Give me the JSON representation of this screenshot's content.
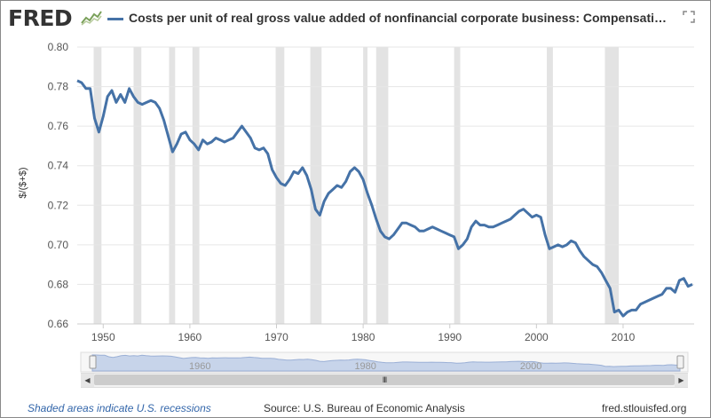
{
  "header": {
    "logo_text": "FRED",
    "logo_icon": "line-graph-icon",
    "title": "Costs per unit of real gross value added of nonfinancial corporate business: Compensation of emp...",
    "expand_icon": "expand-icon"
  },
  "colors": {
    "series": "#4572a7",
    "recession": "#e3e3e3",
    "grid": "#e6e6e6",
    "navigator_fill": "#c7d4ea",
    "navigator_line": "#9bb0d6",
    "link": "#3366aa"
  },
  "navigator": {
    "labels": [
      "1960",
      "1980",
      "2000"
    ],
    "range_start": 1947.0,
    "range_end": 2018.0
  },
  "scrollbar": {
    "grip": "III"
  },
  "footer": {
    "recession_note": "Shaded areas indicate U.S. recessions",
    "source": "Source: U.S. Bureau of Economic Analysis",
    "site": "fred.stlouisfed.org"
  },
  "chart_data": {
    "type": "line",
    "ylabel": "$/($+$)",
    "xlim": [
      1947.0,
      2018.2
    ],
    "ylim": [
      0.66,
      0.8
    ],
    "x_ticks": [
      1950,
      1960,
      1970,
      1980,
      1990,
      2000,
      2010
    ],
    "x_tick_labels": [
      "1950",
      "1960",
      "1970",
      "1980",
      "1990",
      "2000",
      "2010"
    ],
    "y_ticks": [
      0.66,
      0.68,
      0.7,
      0.72,
      0.74,
      0.76,
      0.78,
      0.8
    ],
    "y_tick_labels": [
      "0.66",
      "0.68",
      "0.70",
      "0.72",
      "0.74",
      "0.76",
      "0.78",
      "0.80"
    ],
    "grid": true,
    "recessions": [
      [
        1948.9,
        1949.8
      ],
      [
        1953.5,
        1954.4
      ],
      [
        1957.6,
        1958.3
      ],
      [
        1960.3,
        1961.1
      ],
      [
        1969.9,
        1970.9
      ],
      [
        1973.9,
        1975.2
      ],
      [
        1980.0,
        1980.5
      ],
      [
        1981.5,
        1982.9
      ],
      [
        1990.5,
        1991.2
      ],
      [
        2001.2,
        2001.9
      ],
      [
        2007.9,
        2009.5
      ]
    ],
    "series": [
      {
        "x": [
          1947.0,
          1947.5,
          1948.0,
          1948.5,
          1949.0,
          1949.5,
          1950.0,
          1950.5,
          1951.0,
          1951.5,
          1952.0,
          1952.5,
          1953.0,
          1953.5,
          1954.0,
          1954.5,
          1955.0,
          1955.5,
          1956.0,
          1956.5,
          1957.0,
          1957.5,
          1958.0,
          1958.5,
          1959.0,
          1959.5,
          1960.0,
          1960.5,
          1961.0,
          1961.5,
          1962.0,
          1962.5,
          1963.0,
          1963.5,
          1964.0,
          1964.5,
          1965.0,
          1965.5,
          1966.0,
          1966.5,
          1967.0,
          1967.5,
          1968.0,
          1968.5,
          1969.0,
          1969.5,
          1970.0,
          1970.5,
          1971.0,
          1971.5,
          1972.0,
          1972.5,
          1973.0,
          1973.5,
          1974.0,
          1974.5,
          1975.0,
          1975.5,
          1976.0,
          1976.5,
          1977.0,
          1977.5,
          1978.0,
          1978.5,
          1979.0,
          1979.5,
          1980.0,
          1980.5,
          1981.0,
          1981.5,
          1982.0,
          1982.5,
          1983.0,
          1983.5,
          1984.0,
          1984.5,
          1985.0,
          1985.5,
          1986.0,
          1986.5,
          1987.0,
          1987.5,
          1988.0,
          1988.5,
          1989.0,
          1989.5,
          1990.0,
          1990.5,
          1991.0,
          1991.5,
          1992.0,
          1992.5,
          1993.0,
          1993.5,
          1994.0,
          1994.5,
          1995.0,
          1995.5,
          1996.0,
          1996.5,
          1997.0,
          1997.5,
          1998.0,
          1998.5,
          1999.0,
          1999.5,
          2000.0,
          2000.5,
          2001.0,
          2001.5,
          2002.0,
          2002.5,
          2003.0,
          2003.5,
          2004.0,
          2004.5,
          2005.0,
          2005.5,
          2006.0,
          2006.5,
          2007.0,
          2007.5,
          2008.0,
          2008.5,
          2009.0,
          2009.5,
          2010.0,
          2010.5,
          2011.0,
          2011.5,
          2012.0,
          2012.5,
          2013.0,
          2013.5,
          2014.0,
          2014.5,
          2015.0,
          2015.5,
          2016.0,
          2016.5,
          2017.0,
          2017.5,
          2018.0
        ],
        "values": [
          0.783,
          0.782,
          0.779,
          0.779,
          0.764,
          0.757,
          0.765,
          0.775,
          0.778,
          0.772,
          0.776,
          0.772,
          0.779,
          0.775,
          0.772,
          0.771,
          0.772,
          0.773,
          0.772,
          0.769,
          0.763,
          0.755,
          0.747,
          0.751,
          0.756,
          0.757,
          0.753,
          0.751,
          0.748,
          0.753,
          0.751,
          0.752,
          0.754,
          0.753,
          0.752,
          0.753,
          0.754,
          0.757,
          0.76,
          0.757,
          0.754,
          0.749,
          0.748,
          0.749,
          0.746,
          0.738,
          0.734,
          0.731,
          0.73,
          0.733,
          0.737,
          0.736,
          0.739,
          0.735,
          0.728,
          0.718,
          0.715,
          0.722,
          0.726,
          0.728,
          0.73,
          0.729,
          0.732,
          0.737,
          0.739,
          0.737,
          0.733,
          0.726,
          0.72,
          0.713,
          0.707,
          0.704,
          0.703,
          0.705,
          0.708,
          0.711,
          0.711,
          0.71,
          0.709,
          0.707,
          0.707,
          0.708,
          0.709,
          0.708,
          0.707,
          0.706,
          0.705,
          0.704,
          0.698,
          0.7,
          0.703,
          0.709,
          0.712,
          0.71,
          0.71,
          0.709,
          0.709,
          0.71,
          0.711,
          0.712,
          0.713,
          0.715,
          0.717,
          0.718,
          0.716,
          0.714,
          0.715,
          0.714,
          0.705,
          0.698,
          0.699,
          0.7,
          0.699,
          0.7,
          0.702,
          0.701,
          0.697,
          0.694,
          0.692,
          0.69,
          0.689,
          0.686,
          0.682,
          0.678,
          0.666,
          0.667,
          0.664,
          0.666,
          0.667,
          0.667,
          0.67,
          0.671,
          0.672,
          0.673,
          0.674,
          0.675,
          0.678,
          0.678,
          0.676,
          0.682,
          0.683,
          0.679,
          0.68
        ]
      }
    ]
  }
}
